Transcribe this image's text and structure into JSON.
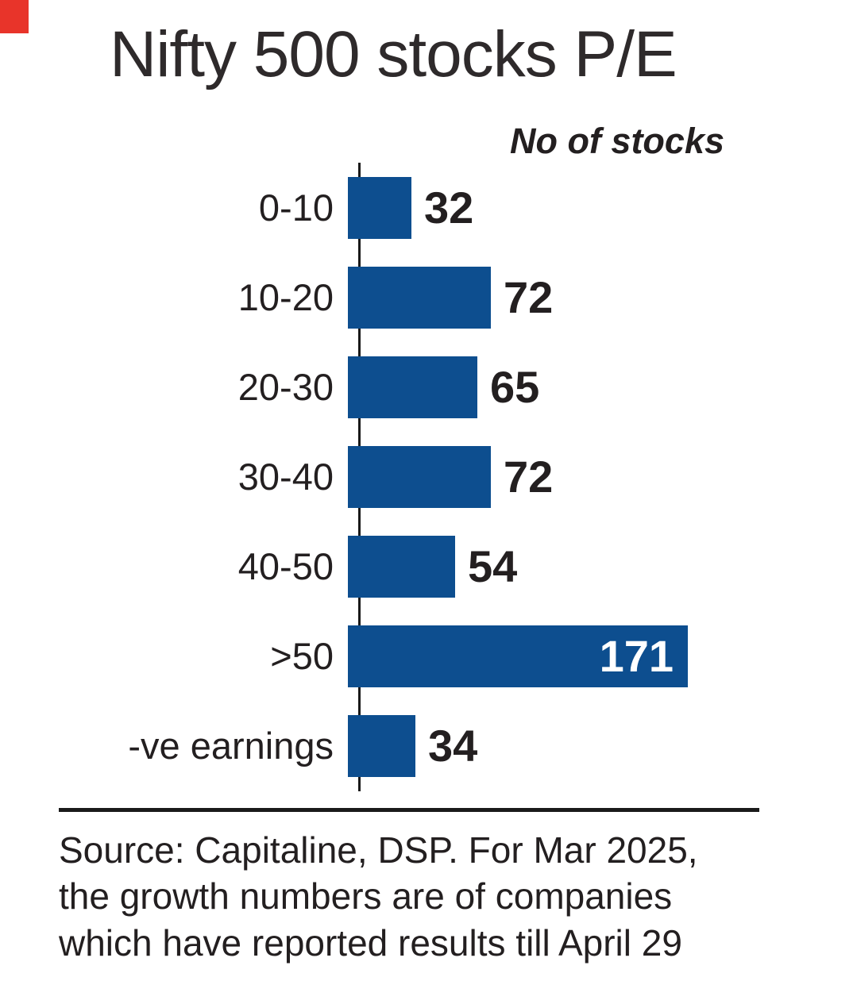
{
  "page": {
    "title": "Nifty 500 stocks P/E",
    "axis_caption": "No of stocks",
    "source_text": "Source: Capitaline, DSP. For Mar 2025,\nthe growth numbers are of companies\nwhich have reported results till April 29"
  },
  "colors": {
    "bar": "#0d4e8f",
    "text": "#231f20",
    "axis": "#1a1a1a",
    "inside_value_label": "#ffffff",
    "corner_mark": "#e8342a"
  },
  "chart_data": {
    "type": "bar",
    "orientation": "horizontal",
    "title": "Nifty 500 stocks P/E",
    "value_axis_label": "No of stocks",
    "categories": [
      "0-10",
      "10-20",
      "20-30",
      "30-40",
      "40-50",
      ">50",
      "-ve earnings"
    ],
    "values": [
      32,
      72,
      65,
      72,
      54,
      171,
      34
    ],
    "xlim": [
      0,
      180
    ],
    "data_labels": true,
    "legend": false,
    "grid": false
  }
}
